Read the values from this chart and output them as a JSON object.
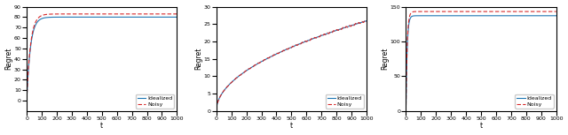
{
  "t_max": 1000,
  "n_points": 2000,
  "plot1": {
    "saturate_val": 80,
    "noisy_level": 83,
    "time_const": 25,
    "ylim": [
      -10,
      90
    ],
    "yticks": [
      0,
      10,
      20,
      30,
      40,
      50,
      60,
      70,
      80,
      90
    ],
    "xticks": [
      0,
      100,
      200,
      300,
      400,
      500,
      600,
      700,
      800,
      900,
      1000
    ],
    "ylabel": "Regret",
    "xlabel": "t"
  },
  "plot2": {
    "scale": 0.82,
    "ylim": [
      0,
      30
    ],
    "yticks": [
      0,
      5,
      10,
      15,
      20,
      25,
      30
    ],
    "xticks": [
      0,
      100,
      200,
      300,
      400,
      500,
      600,
      700,
      800,
      900,
      1000
    ],
    "ylabel": "Regret",
    "xlabel": "t"
  },
  "plot3": {
    "saturate_val": 137,
    "noisy_level": 143,
    "time_const": 8,
    "ylim": [
      0,
      150
    ],
    "yticks": [
      0,
      50,
      100,
      150
    ],
    "xticks": [
      0,
      100,
      200,
      300,
      400,
      500,
      600,
      700,
      800,
      900,
      1000
    ],
    "ylabel": "Regret",
    "xlabel": "t"
  },
  "line_idealized_color": "#1f77b4",
  "line_noisy_color": "#d62728",
  "line_idealized_style": "-",
  "line_noisy_style": "--",
  "line_width": 0.8,
  "legend_idealized": "Idealized",
  "legend_noisy": "Noisy",
  "bg_color": "#ffffff",
  "tick_fontsize": 4.5,
  "label_fontsize": 5.5,
  "legend_fontsize": 4.5
}
